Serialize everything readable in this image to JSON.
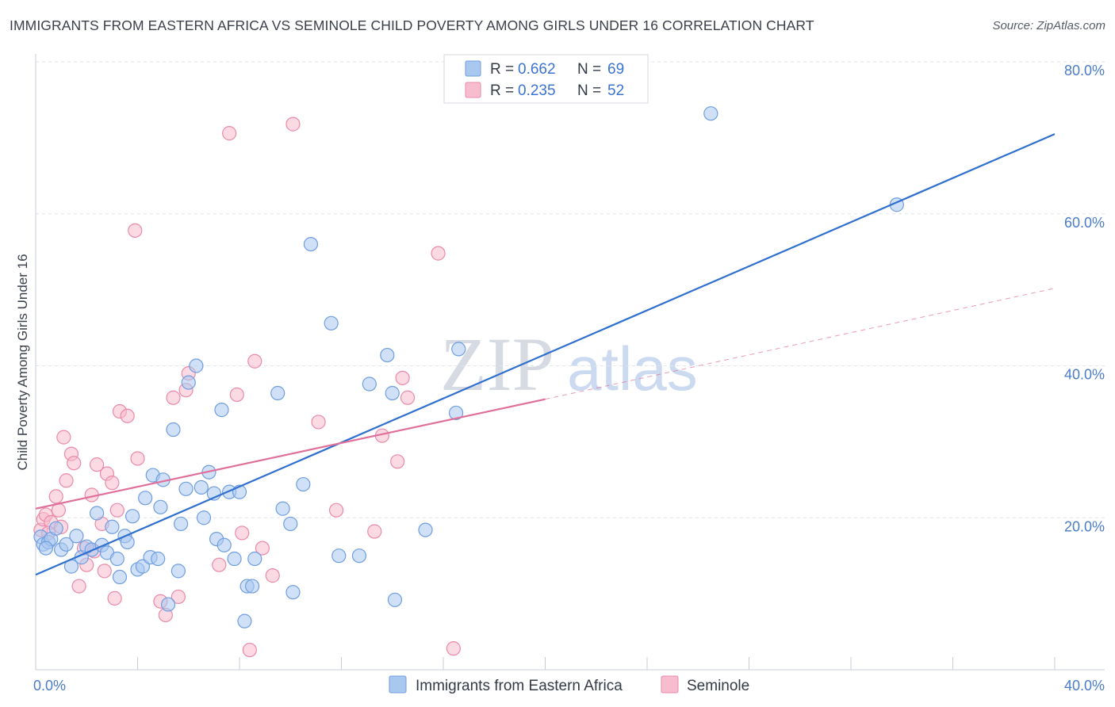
{
  "title": "IMMIGRANTS FROM EASTERN AFRICA VS SEMINOLE CHILD POVERTY AMONG GIRLS UNDER 16 CORRELATION CHART",
  "source": "Source: ZipAtlas.com",
  "watermark": {
    "zip": "ZIP",
    "atlas": "atlas"
  },
  "colors": {
    "blue_fill": "#a9c8f0",
    "blue_stroke": "#6f9ee0",
    "blue_line": "#2f6fcf",
    "pink_fill": "#f7bccd",
    "pink_stroke": "#ea8aa8",
    "pink_line": "#e0709a",
    "axis_text": "#4a7cc9",
    "grid": "#dfe3ea"
  },
  "legend": {
    "rows": [
      {
        "r_label": "R =",
        "r_value": "0.662",
        "n_label": "N =",
        "n_value": "69"
      },
      {
        "r_label": "R =",
        "r_value": "0.235",
        "n_label": "N =",
        "n_value": "52"
      }
    ]
  },
  "chart_data": {
    "type": "scatter",
    "title": "IMMIGRANTS FROM EASTERN AFRICA VS SEMINOLE CHILD POVERTY AMONG GIRLS UNDER 16 CORRELATION CHART",
    "xlabel": "",
    "ylabel": "Child Poverty Among Girls Under 16",
    "xlim": [
      0,
      40
    ],
    "ylim": [
      0,
      80
    ],
    "x_tick_labels": [
      "0.0%",
      "40.0%"
    ],
    "y_tick_labels": [
      "20.0%",
      "40.0%",
      "60.0%",
      "80.0%"
    ],
    "y_ticks": [
      20,
      40,
      60,
      80
    ],
    "grid": true,
    "legend_position": "top-center",
    "series": [
      {
        "name": "Immigrants from Eastern Africa",
        "r": 0.662,
        "n": 69,
        "trend": {
          "x": [
            0,
            40
          ],
          "y": [
            12.5,
            70.5
          ],
          "style": "solid"
        },
        "points": [
          [
            0.2,
            17.5
          ],
          [
            0.3,
            16.5
          ],
          [
            0.5,
            16.8
          ],
          [
            0.6,
            17.2
          ],
          [
            0.8,
            18.6
          ],
          [
            1.0,
            15.8
          ],
          [
            1.2,
            16.5
          ],
          [
            1.4,
            13.6
          ],
          [
            1.6,
            17.6
          ],
          [
            1.8,
            14.8
          ],
          [
            2.0,
            16.2
          ],
          [
            2.2,
            15.8
          ],
          [
            2.4,
            20.6
          ],
          [
            2.6,
            16.4
          ],
          [
            2.8,
            15.4
          ],
          [
            3.0,
            18.8
          ],
          [
            3.2,
            14.6
          ],
          [
            3.3,
            12.2
          ],
          [
            3.5,
            17.6
          ],
          [
            3.6,
            16.8
          ],
          [
            3.8,
            20.2
          ],
          [
            4.0,
            13.2
          ],
          [
            4.2,
            13.6
          ],
          [
            4.3,
            22.6
          ],
          [
            4.5,
            14.8
          ],
          [
            4.6,
            25.6
          ],
          [
            4.8,
            14.6
          ],
          [
            4.9,
            21.4
          ],
          [
            5.0,
            25.0
          ],
          [
            5.2,
            8.6
          ],
          [
            5.4,
            31.6
          ],
          [
            5.6,
            13.0
          ],
          [
            5.7,
            19.2
          ],
          [
            5.9,
            23.8
          ],
          [
            6.0,
            37.8
          ],
          [
            6.3,
            40.0
          ],
          [
            6.5,
            24.0
          ],
          [
            6.6,
            20.0
          ],
          [
            6.8,
            26.0
          ],
          [
            7.0,
            23.2
          ],
          [
            7.1,
            17.2
          ],
          [
            7.3,
            34.2
          ],
          [
            7.4,
            16.4
          ],
          [
            7.6,
            23.4
          ],
          [
            7.8,
            14.6
          ],
          [
            8.0,
            23.4
          ],
          [
            8.2,
            6.4
          ],
          [
            8.3,
            11.0
          ],
          [
            8.5,
            11.0
          ],
          [
            8.6,
            14.6
          ],
          [
            9.5,
            36.4
          ],
          [
            9.7,
            21.2
          ],
          [
            10.0,
            19.2
          ],
          [
            10.1,
            10.2
          ],
          [
            10.5,
            24.4
          ],
          [
            10.8,
            56.0
          ],
          [
            11.6,
            45.6
          ],
          [
            11.9,
            15.0
          ],
          [
            12.7,
            15.0
          ],
          [
            13.1,
            37.6
          ],
          [
            13.8,
            41.4
          ],
          [
            14.0,
            36.4
          ],
          [
            14.1,
            9.2
          ],
          [
            15.3,
            18.4
          ],
          [
            16.6,
            42.2
          ],
          [
            16.5,
            33.8
          ],
          [
            26.5,
            73.2
          ],
          [
            33.8,
            61.2
          ],
          [
            0.4,
            16.0
          ]
        ]
      },
      {
        "name": "Seminole",
        "r": 0.235,
        "n": 52,
        "trend": {
          "x": [
            0,
            20
          ],
          "y": [
            21.2,
            35.6
          ],
          "style": "solid"
        },
        "trend_extension": {
          "x": [
            20,
            40
          ],
          "y": [
            35.6,
            50.2
          ],
          "style": "dashed"
        },
        "points": [
          [
            0.2,
            18.4
          ],
          [
            0.3,
            19.8
          ],
          [
            0.4,
            20.4
          ],
          [
            0.6,
            19.4
          ],
          [
            0.8,
            22.8
          ],
          [
            0.9,
            21.0
          ],
          [
            1.0,
            18.8
          ],
          [
            1.1,
            30.6
          ],
          [
            1.2,
            24.9
          ],
          [
            1.4,
            28.4
          ],
          [
            1.5,
            27.2
          ],
          [
            1.7,
            11.0
          ],
          [
            1.9,
            16.0
          ],
          [
            2.0,
            13.8
          ],
          [
            2.2,
            23.0
          ],
          [
            2.3,
            15.6
          ],
          [
            2.4,
            27.0
          ],
          [
            2.6,
            19.2
          ],
          [
            2.7,
            13.0
          ],
          [
            2.8,
            25.8
          ],
          [
            3.0,
            24.6
          ],
          [
            3.1,
            9.4
          ],
          [
            3.2,
            21.0
          ],
          [
            3.3,
            34.0
          ],
          [
            3.6,
            33.4
          ],
          [
            3.9,
            57.8
          ],
          [
            4.0,
            27.8
          ],
          [
            4.9,
            9.0
          ],
          [
            5.1,
            7.2
          ],
          [
            5.4,
            35.8
          ],
          [
            5.6,
            9.6
          ],
          [
            5.9,
            36.8
          ],
          [
            6.0,
            39.0
          ],
          [
            7.2,
            13.8
          ],
          [
            7.6,
            70.6
          ],
          [
            7.9,
            36.2
          ],
          [
            8.1,
            18.0
          ],
          [
            8.4,
            2.6
          ],
          [
            8.6,
            40.6
          ],
          [
            8.9,
            16.0
          ],
          [
            9.3,
            12.4
          ],
          [
            10.1,
            71.8
          ],
          [
            11.1,
            32.6
          ],
          [
            11.8,
            21.0
          ],
          [
            13.3,
            18.2
          ],
          [
            13.6,
            30.8
          ],
          [
            14.2,
            27.4
          ],
          [
            14.4,
            38.4
          ],
          [
            14.6,
            35.8
          ],
          [
            15.8,
            54.8
          ],
          [
            16.4,
            2.8
          ],
          [
            0.5,
            18.0
          ]
        ]
      }
    ]
  }
}
